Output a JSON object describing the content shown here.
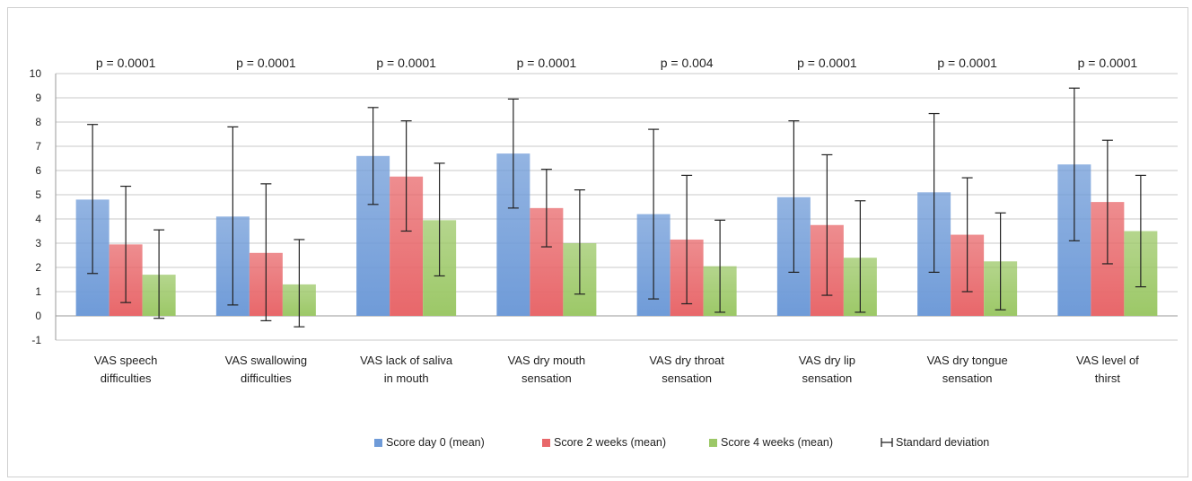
{
  "chart_data": {
    "type": "bar",
    "categories": [
      [
        "VAS speech",
        "difficulties"
      ],
      [
        "VAS swallowing",
        "difficulties"
      ],
      [
        "VAS lack of saliva",
        "in mouth"
      ],
      [
        "VAS dry mouth",
        "sensation"
      ],
      [
        "VAS dry throat",
        "sensation"
      ],
      [
        "VAS dry lip",
        "sensation"
      ],
      [
        "VAS dry tongue",
        "sensation"
      ],
      [
        "VAS level of",
        "thirst"
      ]
    ],
    "p_values": [
      "p = 0.0001",
      "p = 0.0001",
      "p = 0.0001",
      "p = 0.0001",
      "p = 0.004",
      "p = 0.0001",
      "p = 0.0001",
      "p = 0.0001"
    ],
    "series": [
      {
        "name": "Score day 0 (mean)",
        "color": "#6f9bd8",
        "values": [
          4.8,
          4.1,
          6.6,
          6.7,
          4.2,
          4.9,
          5.1,
          6.25
        ],
        "sd_low": [
          1.75,
          0.45,
          4.6,
          4.45,
          0.7,
          1.8,
          1.8,
          3.1
        ],
        "sd_high": [
          7.9,
          7.8,
          8.6,
          8.95,
          7.7,
          8.05,
          8.35,
          9.4
        ]
      },
      {
        "name": "Score 2 weeks (mean)",
        "color": "#e8676a",
        "values": [
          2.95,
          2.6,
          5.75,
          4.45,
          3.15,
          3.75,
          3.35,
          4.7
        ],
        "sd_low": [
          0.55,
          -0.2,
          3.5,
          2.85,
          0.5,
          0.85,
          1.0,
          2.15
        ],
        "sd_high": [
          5.35,
          5.45,
          8.05,
          6.05,
          5.8,
          6.65,
          5.7,
          7.25
        ]
      },
      {
        "name": "Score 4 weeks (mean)",
        "color": "#9cc867",
        "values": [
          1.7,
          1.3,
          3.95,
          3.0,
          2.05,
          2.4,
          2.25,
          3.5
        ],
        "sd_low": [
          -0.1,
          -0.45,
          1.65,
          0.9,
          0.15,
          0.15,
          0.25,
          1.2
        ],
        "sd_high": [
          3.55,
          3.15,
          6.3,
          5.2,
          3.95,
          4.75,
          4.25,
          5.8
        ]
      }
    ],
    "error_bar_label": "Standard deviation",
    "ylim": [
      -1,
      10
    ],
    "yticks": [
      "-1",
      "0",
      "1",
      "2",
      "3",
      "4",
      "5",
      "6",
      "7",
      "8",
      "9",
      "10"
    ],
    "grid": true,
    "legend_position": "bottom"
  }
}
